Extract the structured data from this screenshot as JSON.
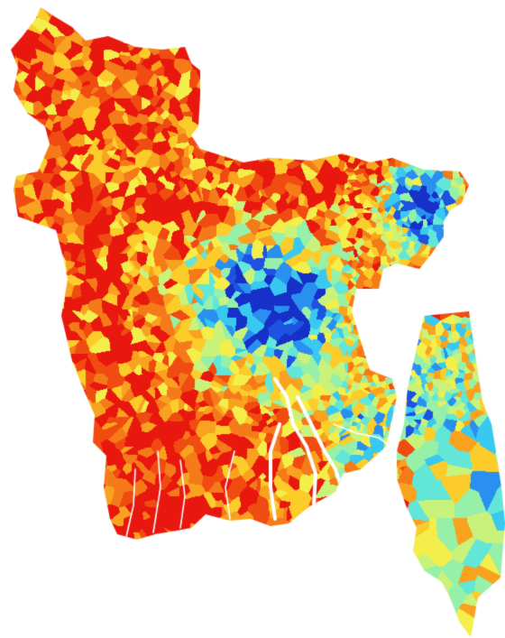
{
  "map": {
    "type": "voronoi-choropleth",
    "colormap": [
      "#e8180f",
      "#f04c12",
      "#f57a19",
      "#f9a21f",
      "#fccc2a",
      "#f4ee4a",
      "#c8f27a",
      "#96f0a8",
      "#62e6d8",
      "#38c8f0",
      "#2a90f0",
      "#1e52e0",
      "#1630c8"
    ],
    "background": "#ffffff",
    "channel_color": "#ffffff"
  }
}
